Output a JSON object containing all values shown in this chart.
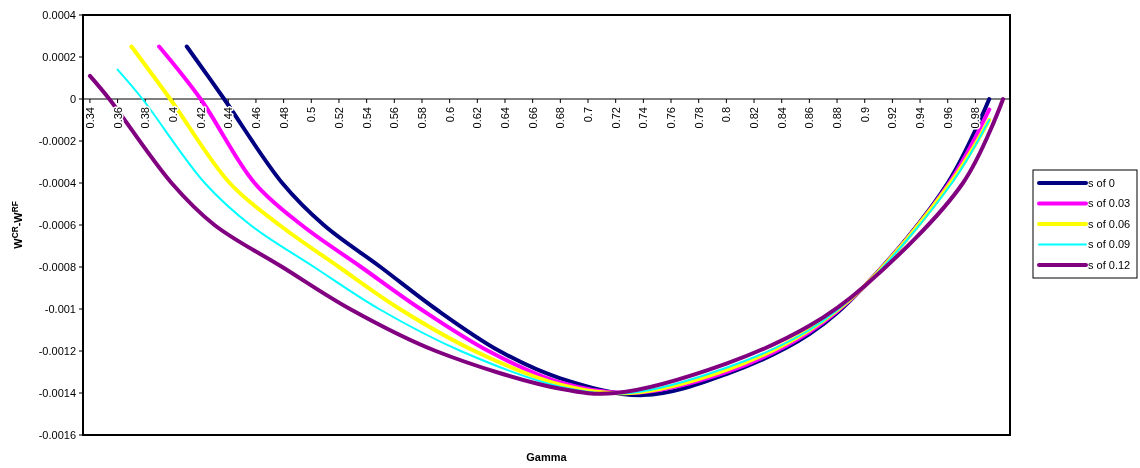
{
  "chart_data": {
    "type": "line",
    "xlabel": "Gamma",
    "ylabel": "W$^{CR}$-W$^{RF}$",
    "xlim": [
      0.335,
      1.005
    ],
    "xticks": [
      0.34,
      0.36,
      0.38,
      0.4,
      0.42,
      0.44,
      0.46,
      0.48,
      0.5,
      0.52,
      0.54,
      0.56,
      0.58,
      0.6,
      0.62,
      0.64,
      0.66,
      0.68,
      0.7,
      0.72,
      0.74,
      0.76,
      0.78,
      0.8,
      0.82,
      0.84,
      0.86,
      0.88,
      0.9,
      0.92,
      0.94,
      0.96,
      0.98
    ],
    "ylim": [
      -0.0016,
      0.0004
    ],
    "yticks": [
      -0.0016,
      -0.0014,
      -0.0012,
      -0.001,
      -0.0008,
      -0.0006,
      -0.0004,
      -0.0002,
      0,
      0.0002,
      0.0004
    ],
    "grid": false,
    "legend": "right",
    "marker": "none",
    "line_style": "solid",
    "series": [
      {
        "name": "s of 0",
        "color": "#000080",
        "x": [
          0.41,
          0.437,
          0.479,
          0.509,
          0.55,
          0.59,
          0.636,
          0.68,
          0.74,
          0.8,
          0.86,
          0.9,
          0.96,
          0.99
        ],
        "values": [
          0.00025,
          0,
          -0.0004,
          -0.0006,
          -0.0008,
          -0.001,
          -0.0012,
          -0.00133,
          -0.00141,
          -0.00131,
          -0.00112,
          -0.00089,
          -0.0004,
          0
        ]
      },
      {
        "name": "s of 0.03",
        "color": "#ff00ff",
        "x": [
          0.39,
          0.42,
          0.459,
          0.493,
          0.536,
          0.579,
          0.628,
          0.68,
          0.73,
          0.8,
          0.86,
          0.9,
          0.96,
          0.99
        ],
        "values": [
          0.00025,
          0,
          -0.0004,
          -0.0006,
          -0.0008,
          -0.001,
          -0.0012,
          -0.00135,
          -0.0014,
          -0.0013,
          -0.00111,
          -0.00089,
          -0.00041,
          -5e-05
        ]
      },
      {
        "name": "s of 0.06",
        "color": "#ffff00",
        "x": [
          0.37,
          0.398,
          0.441,
          0.477,
          0.52,
          0.564,
          0.618,
          0.68,
          0.73,
          0.8,
          0.86,
          0.9,
          0.962,
          0.99
        ],
        "values": [
          0.00025,
          0,
          -0.0004,
          -0.0006,
          -0.0008,
          -0.001,
          -0.0012,
          -0.00136,
          -0.0014,
          -0.00129,
          -0.0011,
          -0.00089,
          -0.0004,
          -0.0001
        ]
      },
      {
        "name": "s of 0.09",
        "color": "#00ffff",
        "x": [
          0.36,
          0.378,
          0.423,
          0.456,
          0.502,
          0.549,
          0.608,
          0.68,
          0.73,
          0.8,
          0.86,
          0.9,
          0.963,
          0.99
        ],
        "values": [
          0.00014,
          0,
          -0.0004,
          -0.0006,
          -0.0008,
          -0.001,
          -0.0012,
          -0.00137,
          -0.0014,
          -0.00128,
          -0.0011,
          -0.00089,
          -0.0004,
          -0.0001
        ]
      },
      {
        "name": "s of 0.12",
        "color": "#800080",
        "x": [
          0.34,
          0.354,
          0.399,
          0.43,
          0.479,
          0.528,
          0.59,
          0.68,
          0.72,
          0.8,
          0.86,
          0.9,
          0.971,
          1.0
        ],
        "values": [
          0.00011,
          0,
          -0.0004,
          -0.0006,
          -0.0008,
          -0.001,
          -0.0012,
          -0.00138,
          -0.0014,
          -0.00126,
          -0.00108,
          -0.00089,
          -0.0004,
          0
        ]
      }
    ]
  }
}
